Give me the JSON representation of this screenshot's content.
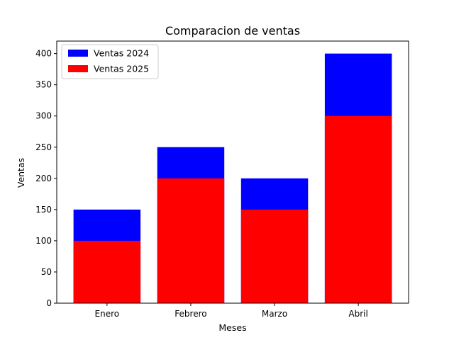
{
  "chart_data": {
    "type": "bar",
    "stacking": "overlay",
    "title": "Comparacion de ventas",
    "xlabel": "Meses",
    "ylabel": "Ventas",
    "categories": [
      "Enero",
      "Febrero",
      "Marzo",
      "Abril"
    ],
    "series": [
      {
        "name": "Ventas 2024",
        "color": "#0000ff",
        "values": [
          150,
          250,
          200,
          400
        ]
      },
      {
        "name": "Ventas 2025",
        "color": "#ff0000",
        "values": [
          100,
          200,
          150,
          300
        ]
      }
    ],
    "ylim": [
      0,
      420
    ],
    "yticks": [
      0,
      50,
      100,
      150,
      200,
      250,
      300,
      350,
      400
    ],
    "grid": false,
    "legend_position": "top-left"
  }
}
